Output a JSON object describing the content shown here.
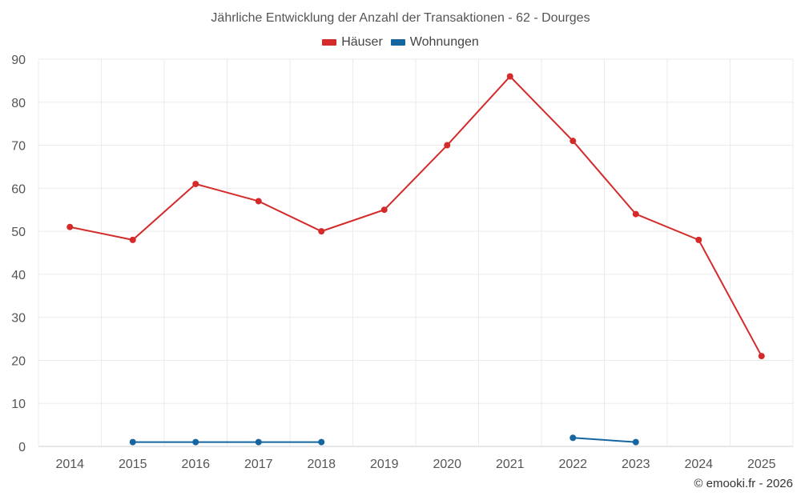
{
  "chart_data": {
    "type": "line",
    "title": "Jährliche Entwicklung der Anzahl der Transaktionen - 62 - Dourges",
    "categories": [
      "2014",
      "2015",
      "2016",
      "2017",
      "2018",
      "2019",
      "2020",
      "2021",
      "2022",
      "2023",
      "2024",
      "2025"
    ],
    "ylim": [
      0,
      90
    ],
    "yticks": [
      0,
      10,
      20,
      30,
      40,
      50,
      60,
      70,
      80,
      90
    ],
    "grid": true,
    "legend_position": "top-center",
    "series": [
      {
        "name": "Häuser",
        "color": "#d42a2a",
        "values": [
          51,
          48,
          61,
          57,
          50,
          55,
          70,
          86,
          71,
          54,
          48,
          21
        ]
      },
      {
        "name": "Wohnungen",
        "color": "#1465a0",
        "values": [
          null,
          1,
          1,
          1,
          1,
          null,
          null,
          null,
          2,
          1,
          null,
          null
        ]
      }
    ]
  },
  "credit": "© emooki.fr - 2026"
}
